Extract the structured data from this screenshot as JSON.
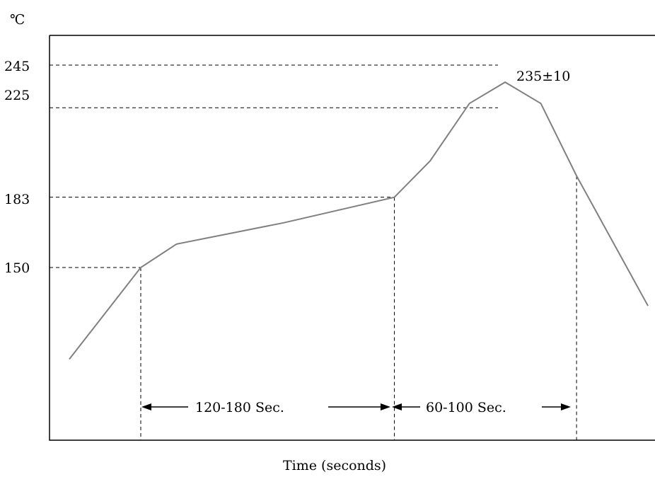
{
  "chart_data": {
    "type": "line",
    "title": "",
    "xlabel": "Time (seconds)",
    "ylabel": "℃",
    "yticks": [
      150,
      183,
      225,
      245
    ],
    "y_unit": "℃",
    "ylim": [
      90,
      257
    ],
    "series": [
      {
        "name": "",
        "points": [
          {
            "x": 0,
            "y": 107
          },
          {
            "x": 1,
            "y": 150
          },
          {
            "x": 1.5,
            "y": 161
          },
          {
            "x": 3,
            "y": 171
          },
          {
            "x": 4.55,
            "y": 183
          },
          {
            "x": 5.05,
            "y": 200
          },
          {
            "x": 5.6,
            "y": 227
          },
          {
            "x": 6.1,
            "y": 237
          },
          {
            "x": 6.6,
            "y": 227
          },
          {
            "x": 7.1,
            "y": 193
          },
          {
            "x": 8.1,
            "y": 132
          }
        ]
      }
    ],
    "reference_lines": [
      {
        "y": 150,
        "x_end": 1
      },
      {
        "y": 183,
        "x_end": 4.55
      },
      {
        "y": 225,
        "x_end": 6
      },
      {
        "y": 245,
        "x_end": 6
      }
    ],
    "vertical_markers": [
      1,
      4.55,
      7.1
    ],
    "annotations": {
      "peak_label": "235±10",
      "phase1_label": "120-180 Sec.",
      "phase2_label": "60-100 Sec."
    },
    "grid": false,
    "legend": "none"
  }
}
